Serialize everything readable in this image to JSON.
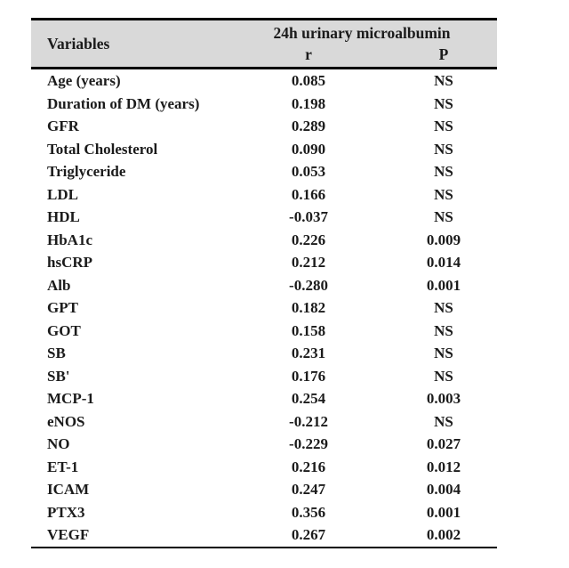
{
  "table": {
    "header": {
      "variables_label": "Variables",
      "group_label": "24h urinary microalbumin",
      "col_r_label": "r",
      "col_p_label": "P"
    },
    "rows": [
      {
        "variable": "Age (years)",
        "r": "0.085",
        "p": "NS"
      },
      {
        "variable": "Duration of DM (years)",
        "r": "0.198",
        "p": "NS"
      },
      {
        "variable": "GFR",
        "r": "0.289",
        "p": "NS"
      },
      {
        "variable": "Total Cholesterol",
        "r": "0.090",
        "p": "NS"
      },
      {
        "variable": "Triglyceride",
        "r": "0.053",
        "p": "NS"
      },
      {
        "variable": "LDL",
        "r": "0.166",
        "p": "NS"
      },
      {
        "variable": "HDL",
        "r": "-0.037",
        "p": "NS"
      },
      {
        "variable": "HbA1c",
        "r": "0.226",
        "p": "0.009"
      },
      {
        "variable": "hsCRP",
        "r": "0.212",
        "p": "0.014"
      },
      {
        "variable": "Alb",
        "r": "-0.280",
        "p": "0.001"
      },
      {
        "variable": "GPT",
        "r": "0.182",
        "p": "NS"
      },
      {
        "variable": "GOT",
        "r": "0.158",
        "p": "NS"
      },
      {
        "variable": "SB",
        "r": "0.231",
        "p": "NS"
      },
      {
        "variable": "SB'",
        "r": "0.176",
        "p": "NS"
      },
      {
        "variable": "MCP-1",
        "r": "0.254",
        "p": "0.003"
      },
      {
        "variable": "eNOS",
        "r": "-0.212",
        "p": "NS"
      },
      {
        "variable": "NO",
        "r": "-0.229",
        "p": "0.027"
      },
      {
        "variable": "ET-1",
        "r": "0.216",
        "p": "0.012"
      },
      {
        "variable": "ICAM",
        "r": "0.247",
        "p": "0.004"
      },
      {
        "variable": "PTX3",
        "r": "0.356",
        "p": "0.001"
      },
      {
        "variable": "VEGF",
        "r": "0.267",
        "p": "0.002"
      }
    ],
    "colors": {
      "header_bg": "#d9d9d9",
      "border": "#000000",
      "text": "#1b1b1b"
    }
  }
}
